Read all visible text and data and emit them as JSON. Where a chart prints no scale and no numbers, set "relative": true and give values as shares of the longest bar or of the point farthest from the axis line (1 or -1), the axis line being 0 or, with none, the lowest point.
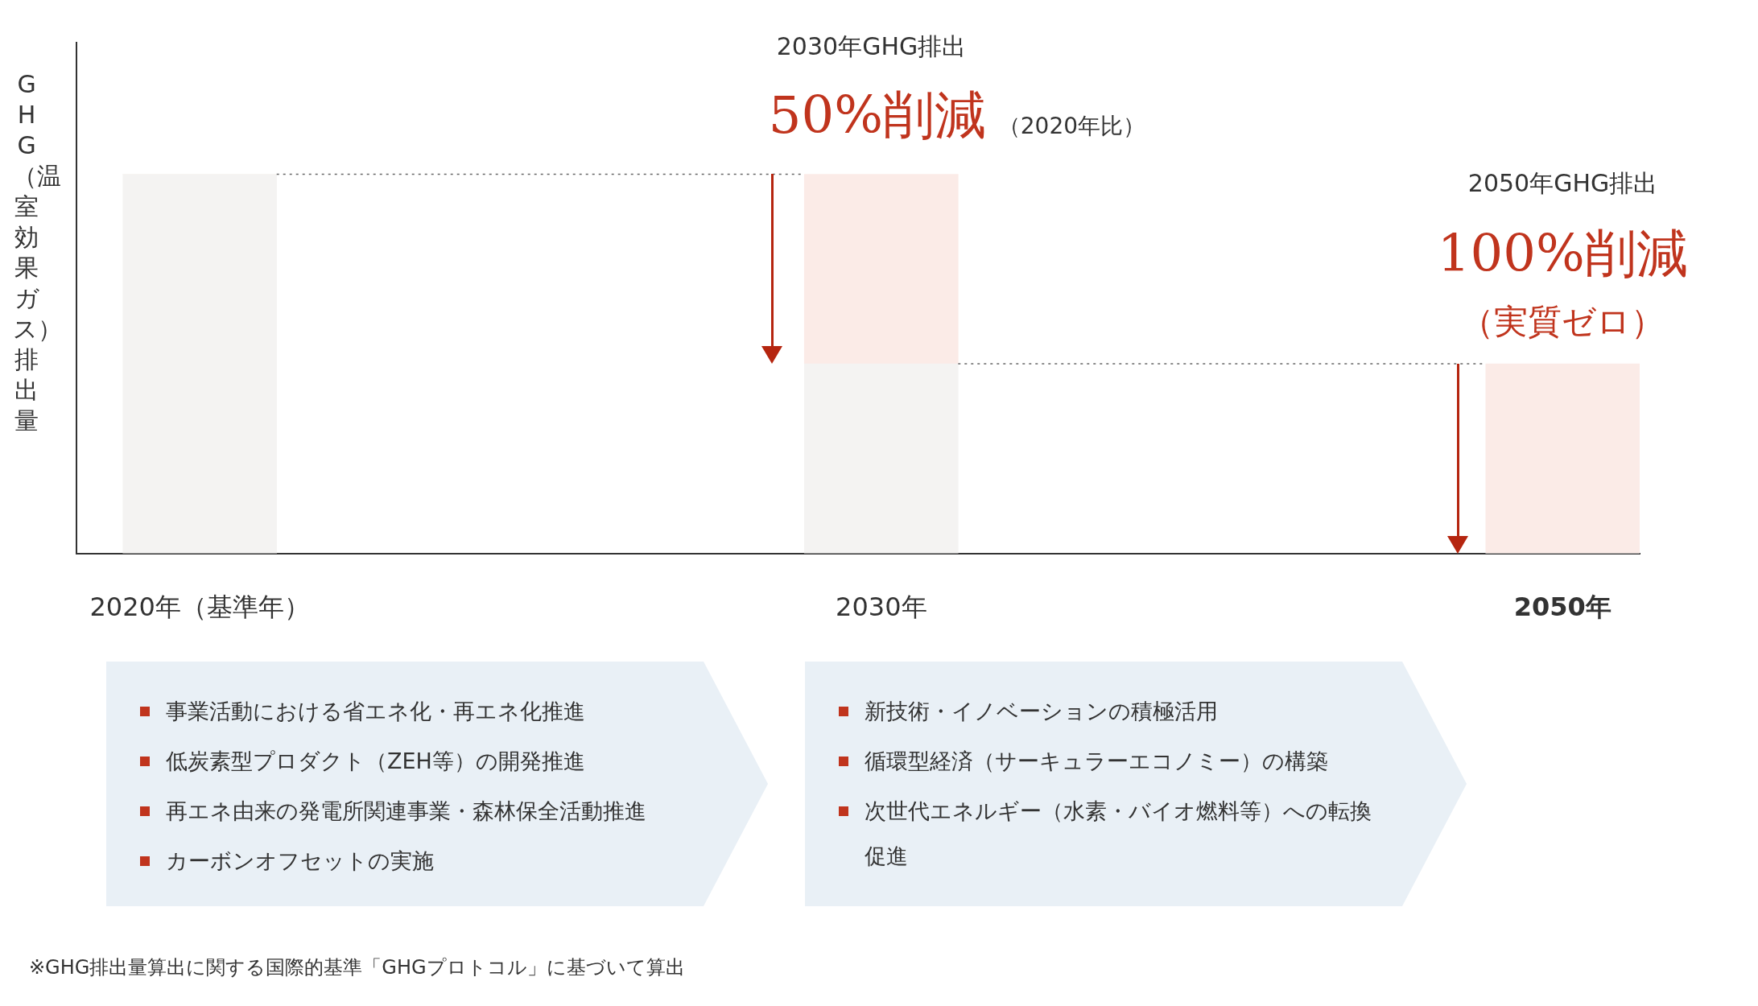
{
  "chart_data": {
    "type": "bar",
    "relative": true,
    "stacked": true,
    "legend": false,
    "grid": false,
    "ylabel": "GHG（温室効果ガス）排出量",
    "categories": [
      "2020年（基準年）",
      "2030年",
      "2050年"
    ],
    "series": [
      {
        "color": "#f4f3f2",
        "values": [
          1,
          0.5,
          0
        ]
      },
      {
        "color": "#fbebe7",
        "values": [
          0,
          0.5,
          0.5
        ]
      }
    ],
    "ref_lines": [
      {
        "axis": "y",
        "value": 1,
        "color": "#666666",
        "line_style": "dotted"
      },
      {
        "axis": "y",
        "value": 0.5,
        "color": "#666666",
        "line_style": "dotted"
      }
    ],
    "annotations": [
      "2030年GHG排出",
      "50%削減",
      "（2020年比）",
      "2050年GHG排出",
      "100%削減",
      "（実質ゼロ）",
      "事業活動における省エネ化・再エネ化推進",
      "低炭素型プロダクト（ZEH等）の開発推進",
      "再エネ由来の発電所関連事業・森林保全活動推進",
      "カーボンオフセットの実施",
      "新技術・イノベーションの積極活用",
      "循環型経済（サーキュラーエコノミー）の構築",
      "次世代エネルギー（水素・バイオ燃料等）への転換促進",
      "※GHG排出量算出に関する国際的基準「GHGプロトコル」に基づいて算出"
    ]
  }
}
